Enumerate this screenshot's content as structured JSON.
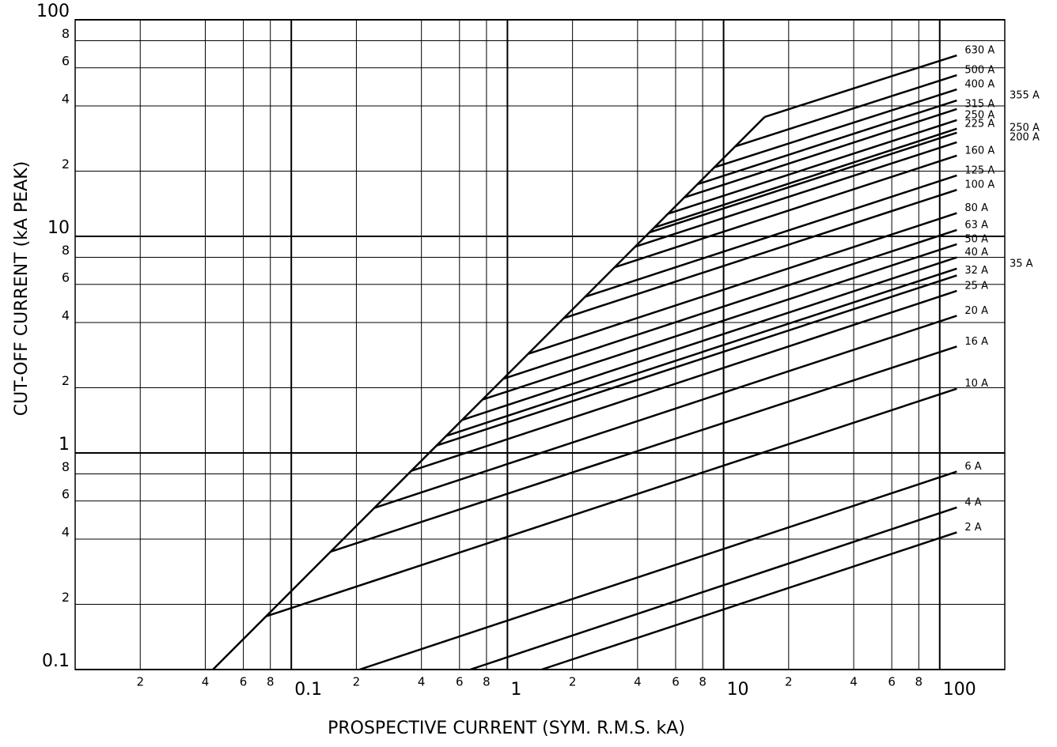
{
  "chart_data": {
    "type": "line",
    "xlabel": "PROSPECTIVE CURRENT (SYM. R.M.S. kA)",
    "ylabel": "CUT-OFF CURRENT (kA PEAK)",
    "xscale": "log",
    "yscale": "log",
    "xlim": [
      0.01,
      200
    ],
    "ylim": [
      0.1,
      100
    ],
    "grid": true,
    "color": "#000000",
    "xticks": [
      {
        "value": 0.02,
        "label": "2"
      },
      {
        "value": 0.04,
        "label": "4"
      },
      {
        "value": 0.06,
        "label": "6"
      },
      {
        "value": 0.08,
        "label": "8"
      },
      0.1,
      {
        "value": 0.2,
        "label": "2"
      },
      {
        "value": 0.4,
        "label": "4"
      },
      {
        "value": 0.6,
        "label": "6"
      },
      {
        "value": 0.8,
        "label": "8"
      },
      1,
      {
        "value": 2,
        "label": "2"
      },
      {
        "value": 4,
        "label": "4"
      },
      {
        "value": 6,
        "label": "6"
      },
      {
        "value": 8,
        "label": "8"
      },
      10,
      {
        "value": 20,
        "label": "2"
      },
      {
        "value": 40,
        "label": "4"
      },
      {
        "value": 60,
        "label": "6"
      },
      {
        "value": 80,
        "label": "8"
      },
      100
    ],
    "yticks": [
      0.1,
      {
        "value": 0.2,
        "label": "2"
      },
      {
        "value": 0.4,
        "label": "4"
      },
      {
        "value": 0.6,
        "label": "6"
      },
      {
        "value": 0.8,
        "label": "8"
      },
      1,
      {
        "value": 2,
        "label": "2"
      },
      {
        "value": 4,
        "label": "4"
      },
      {
        "value": 6,
        "label": "6"
      },
      {
        "value": 8,
        "label": "8"
      },
      10,
      {
        "value": 20,
        "label": "2"
      },
      {
        "value": 40,
        "label": "4"
      },
      {
        "value": 60,
        "label": "6"
      },
      {
        "value": 80,
        "label": "8"
      },
      100
    ],
    "series": [
      {
        "name": "630 A",
        "x": [
          15.5,
          120
        ],
        "values": [
          35.6,
          68.5
        ]
      },
      {
        "name": "500 A",
        "x": [
          11.3,
          120
        ],
        "values": [
          26.0,
          55.5
        ]
      },
      {
        "name": "400 A",
        "x": [
          9.04,
          120
        ],
        "values": [
          20.8,
          47.7
        ]
      },
      {
        "name": "355 A",
        "x": [
          7.57,
          120
        ],
        "values": [
          17.4,
          42.4
        ]
      },
      {
        "name": "315 A",
        "x": [
          6.56,
          120
        ],
        "values": [
          15.1,
          38.7
        ]
      },
      {
        "name": "250 A",
        "x": [
          5.51,
          120
        ],
        "values": [
          12.7,
          34.4
        ]
      },
      {
        "name": "225 A",
        "x": [
          4.8,
          120
        ],
        "values": [
          11.0,
          31.4
        ]
      },
      {
        "name": "250 A",
        "x": [
          4.51,
          120
        ],
        "values": [
          10.4,
          30.1
        ]
      },
      {
        "name": "200 A",
        "x": [
          3.89,
          120
        ],
        "values": [
          8.95,
          27.2
        ]
      },
      {
        "name": "160 A",
        "x": [
          3.12,
          120
        ],
        "values": [
          7.19,
          23.6
        ]
      },
      {
        "name": "125 A",
        "x": [
          2.29,
          120
        ],
        "values": [
          5.26,
          19.1
        ]
      },
      {
        "name": "100 A",
        "x": [
          1.82,
          120
        ],
        "values": [
          4.19,
          16.4
        ]
      },
      {
        "name": "80 A",
        "x": [
          1.25,
          120
        ],
        "values": [
          2.87,
          12.8
        ]
      },
      {
        "name": "63 A",
        "x": [
          0.957,
          120
        ],
        "values": [
          2.2,
          10.7
        ]
      },
      {
        "name": "50 A",
        "x": [
          0.763,
          120
        ],
        "values": [
          1.76,
          9.2
        ]
      },
      {
        "name": "40 A",
        "x": [
          0.617,
          120
        ],
        "values": [
          1.42,
          8.0
        ]
      },
      {
        "name": "35 A",
        "x": [
          0.523,
          120
        ],
        "values": [
          1.2,
          7.1
        ]
      },
      {
        "name": "32 A",
        "x": [
          0.468,
          120
        ],
        "values": [
          1.08,
          6.6
        ]
      },
      {
        "name": "25 A",
        "x": [
          0.359,
          120
        ],
        "values": [
          0.826,
          5.6
        ]
      },
      {
        "name": "20 A",
        "x": [
          0.243,
          120
        ],
        "values": [
          0.558,
          4.3
        ]
      },
      {
        "name": "16 A",
        "x": [
          0.152,
          120
        ],
        "values": [
          0.35,
          3.1
        ]
      },
      {
        "name": "10 A",
        "x": [
          0.0764,
          120
        ],
        "values": [
          0.176,
          1.98
        ]
      },
      {
        "name": "6 A",
        "x": [
          0.207,
          120
        ],
        "values": [
          0.1,
          0.82
        ]
      },
      {
        "name": "4 A",
        "x": [
          0.673,
          120
        ],
        "values": [
          0.1,
          0.56
        ]
      },
      {
        "name": "2 A",
        "x": [
          1.44,
          120
        ],
        "values": [
          0.1,
          0.43
        ]
      },
      {
        "x": [
          0.0434,
          15.5
        ],
        "values": [
          0.1,
          35.6
        ]
      }
    ]
  }
}
